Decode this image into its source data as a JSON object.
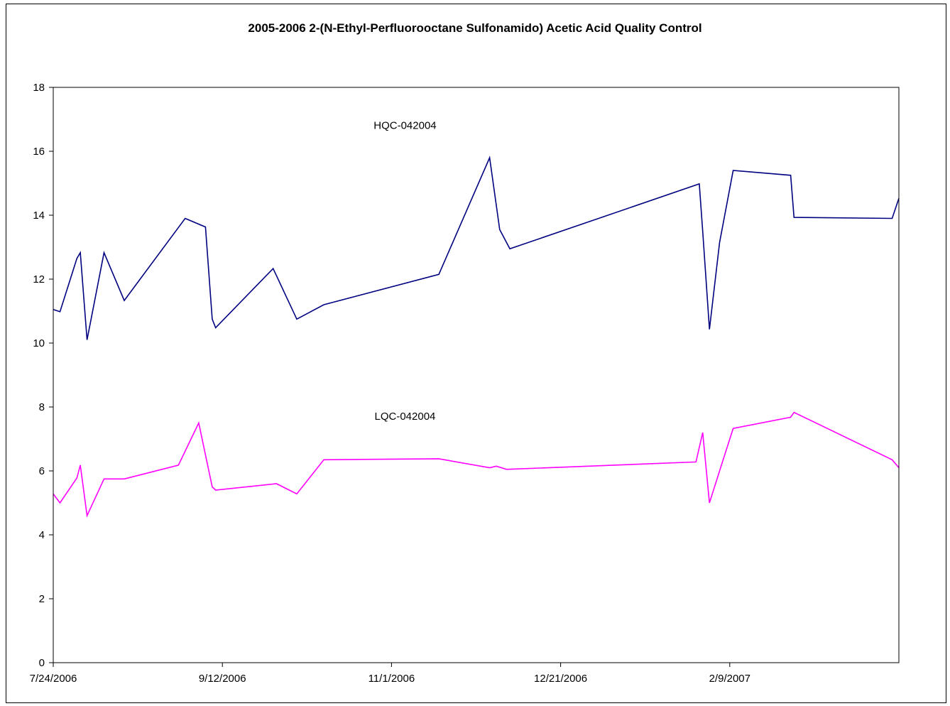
{
  "chart_data": {
    "type": "line",
    "title": "2005-2006 2-(N-Ethyl-Perfluorooctane Sulfonamido) Acetic Acid Quality Control",
    "xlabel": "",
    "ylabel": "",
    "ylim": [
      0,
      18
    ],
    "yticks": [
      0,
      2,
      4,
      6,
      8,
      10,
      12,
      14,
      16,
      18
    ],
    "xlim": [
      "2006-07-24",
      "2007-03-31"
    ],
    "xticks": [
      {
        "date": "2006-07-24",
        "label": "7/24/2006"
      },
      {
        "date": "2006-09-12",
        "label": "9/12/2006"
      },
      {
        "date": "2006-11-01",
        "label": "11/1/2006"
      },
      {
        "date": "2006-12-21",
        "label": "12/21/2006"
      },
      {
        "date": "2007-02-09",
        "label": "2/9/2007"
      }
    ],
    "grid": false,
    "legend": "none",
    "series": [
      {
        "name": "HQC-042004",
        "color": "#000080",
        "label_at": {
          "date": "2006-11-05",
          "value": 16.7
        },
        "points": [
          {
            "date": "2006-07-24",
            "value": 11.05
          },
          {
            "date": "2006-07-26",
            "value": 10.98
          },
          {
            "date": "2006-07-31",
            "value": 12.65
          },
          {
            "date": "2006-08-01",
            "value": 12.83
          },
          {
            "date": "2006-08-03",
            "value": 10.1
          },
          {
            "date": "2006-08-08",
            "value": 12.83
          },
          {
            "date": "2006-08-14",
            "value": 11.33
          },
          {
            "date": "2006-09-01",
            "value": 13.9
          },
          {
            "date": "2006-09-07",
            "value": 13.63
          },
          {
            "date": "2006-09-09",
            "value": 10.75
          },
          {
            "date": "2006-09-10",
            "value": 10.48
          },
          {
            "date": "2006-09-27",
            "value": 12.33
          },
          {
            "date": "2006-10-04",
            "value": 10.75
          },
          {
            "date": "2006-10-12",
            "value": 11.2
          },
          {
            "date": "2006-11-15",
            "value": 12.15
          },
          {
            "date": "2006-11-30",
            "value": 15.8
          },
          {
            "date": "2006-12-03",
            "value": 13.55
          },
          {
            "date": "2006-12-06",
            "value": 12.95
          },
          {
            "date": "2007-01-31",
            "value": 14.98
          },
          {
            "date": "2007-02-01",
            "value": 13.5
          },
          {
            "date": "2007-02-03",
            "value": 10.43
          },
          {
            "date": "2007-02-06",
            "value": 13.15
          },
          {
            "date": "2007-02-10",
            "value": 15.4
          },
          {
            "date": "2007-02-27",
            "value": 15.25
          },
          {
            "date": "2007-02-28",
            "value": 13.93
          },
          {
            "date": "2007-03-29",
            "value": 13.9
          },
          {
            "date": "2007-03-31",
            "value": 14.53
          }
        ]
      },
      {
        "name": "LQC-042004",
        "color": "#ff00ff",
        "label_at": {
          "date": "2006-11-05",
          "value": 7.6
        },
        "points": [
          {
            "date": "2006-07-24",
            "value": 5.28
          },
          {
            "date": "2006-07-26",
            "value": 5.0
          },
          {
            "date": "2006-07-31",
            "value": 5.78
          },
          {
            "date": "2006-08-01",
            "value": 6.18
          },
          {
            "date": "2006-08-03",
            "value": 4.6
          },
          {
            "date": "2006-08-08",
            "value": 5.75
          },
          {
            "date": "2006-08-14",
            "value": 5.75
          },
          {
            "date": "2006-08-30",
            "value": 6.18
          },
          {
            "date": "2006-09-05",
            "value": 7.5
          },
          {
            "date": "2006-09-09",
            "value": 5.5
          },
          {
            "date": "2006-09-10",
            "value": 5.4
          },
          {
            "date": "2006-09-28",
            "value": 5.6
          },
          {
            "date": "2006-10-04",
            "value": 5.28
          },
          {
            "date": "2006-10-12",
            "value": 6.35
          },
          {
            "date": "2006-11-15",
            "value": 6.38
          },
          {
            "date": "2006-11-30",
            "value": 6.1
          },
          {
            "date": "2006-12-02",
            "value": 6.15
          },
          {
            "date": "2006-12-05",
            "value": 6.05
          },
          {
            "date": "2007-01-30",
            "value": 6.28
          },
          {
            "date": "2007-02-01",
            "value": 7.2
          },
          {
            "date": "2007-02-03",
            "value": 5.0
          },
          {
            "date": "2007-02-06",
            "value": 6.0
          },
          {
            "date": "2007-02-10",
            "value": 7.33
          },
          {
            "date": "2007-02-27",
            "value": 7.68
          },
          {
            "date": "2007-02-28",
            "value": 7.83
          },
          {
            "date": "2007-03-29",
            "value": 6.35
          },
          {
            "date": "2007-03-31",
            "value": 6.1
          }
        ]
      }
    ]
  }
}
